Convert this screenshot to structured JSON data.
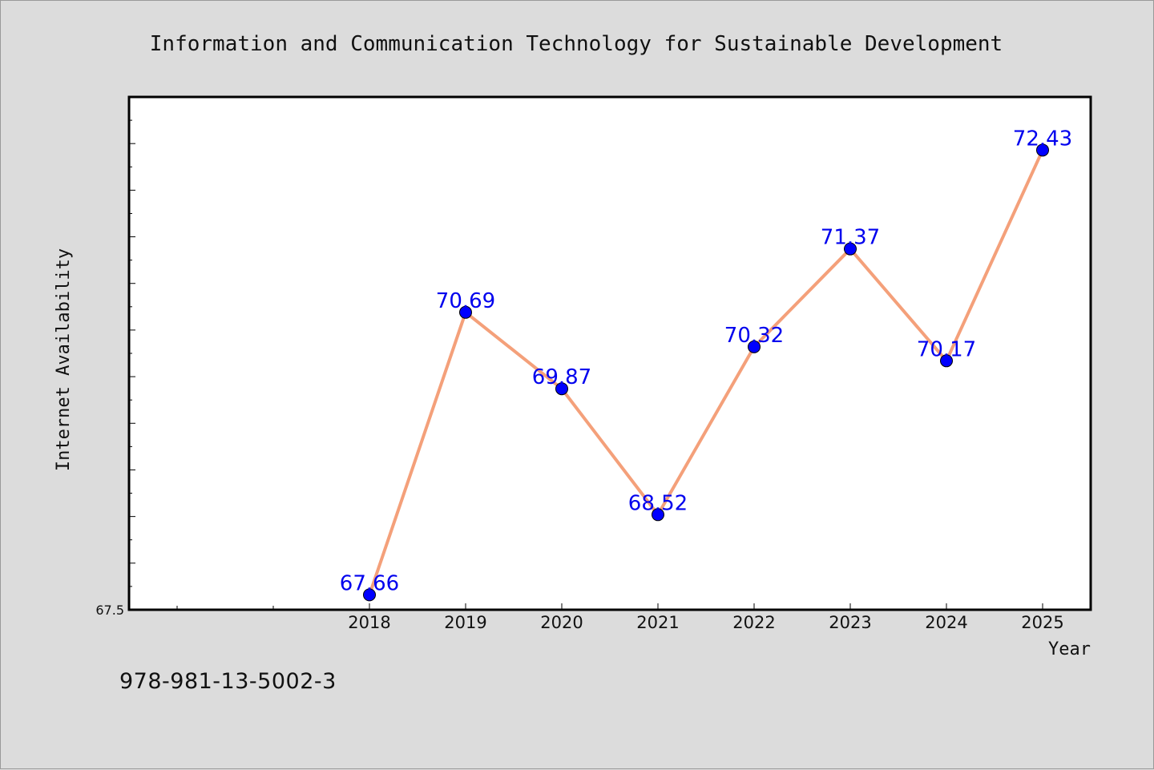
{
  "chart_data": {
    "type": "line",
    "title": "Information and Communication Technology for Sustainable Development",
    "xlabel": "Year",
    "ylabel": "Internet Availability",
    "categories": [
      "2018",
      "2019",
      "2020",
      "2021",
      "2022",
      "2023",
      "2024",
      "2025"
    ],
    "series": [
      {
        "values": [
          67.66,
          70.69,
          69.87,
          68.52,
          70.32,
          71.37,
          70.17,
          72.43
        ],
        "labels": [
          "67.66",
          "70.69",
          "69.87",
          "68.52",
          "70.32",
          "71.37",
          "70.17",
          "72.43"
        ]
      }
    ],
    "y_tick_labels": [
      "67.5"
    ],
    "ylim": [
      67.5,
      73.0
    ],
    "xlim_years": [
      2015.5,
      2025.5
    ],
    "grid": false,
    "colors": {
      "line": "#f4a07a",
      "marker": "#0000ff",
      "data_label": "#0000ee",
      "background": "#dcdcdc",
      "plot_area": "#ffffff"
    }
  },
  "caption": "978-981-13-5002-3"
}
